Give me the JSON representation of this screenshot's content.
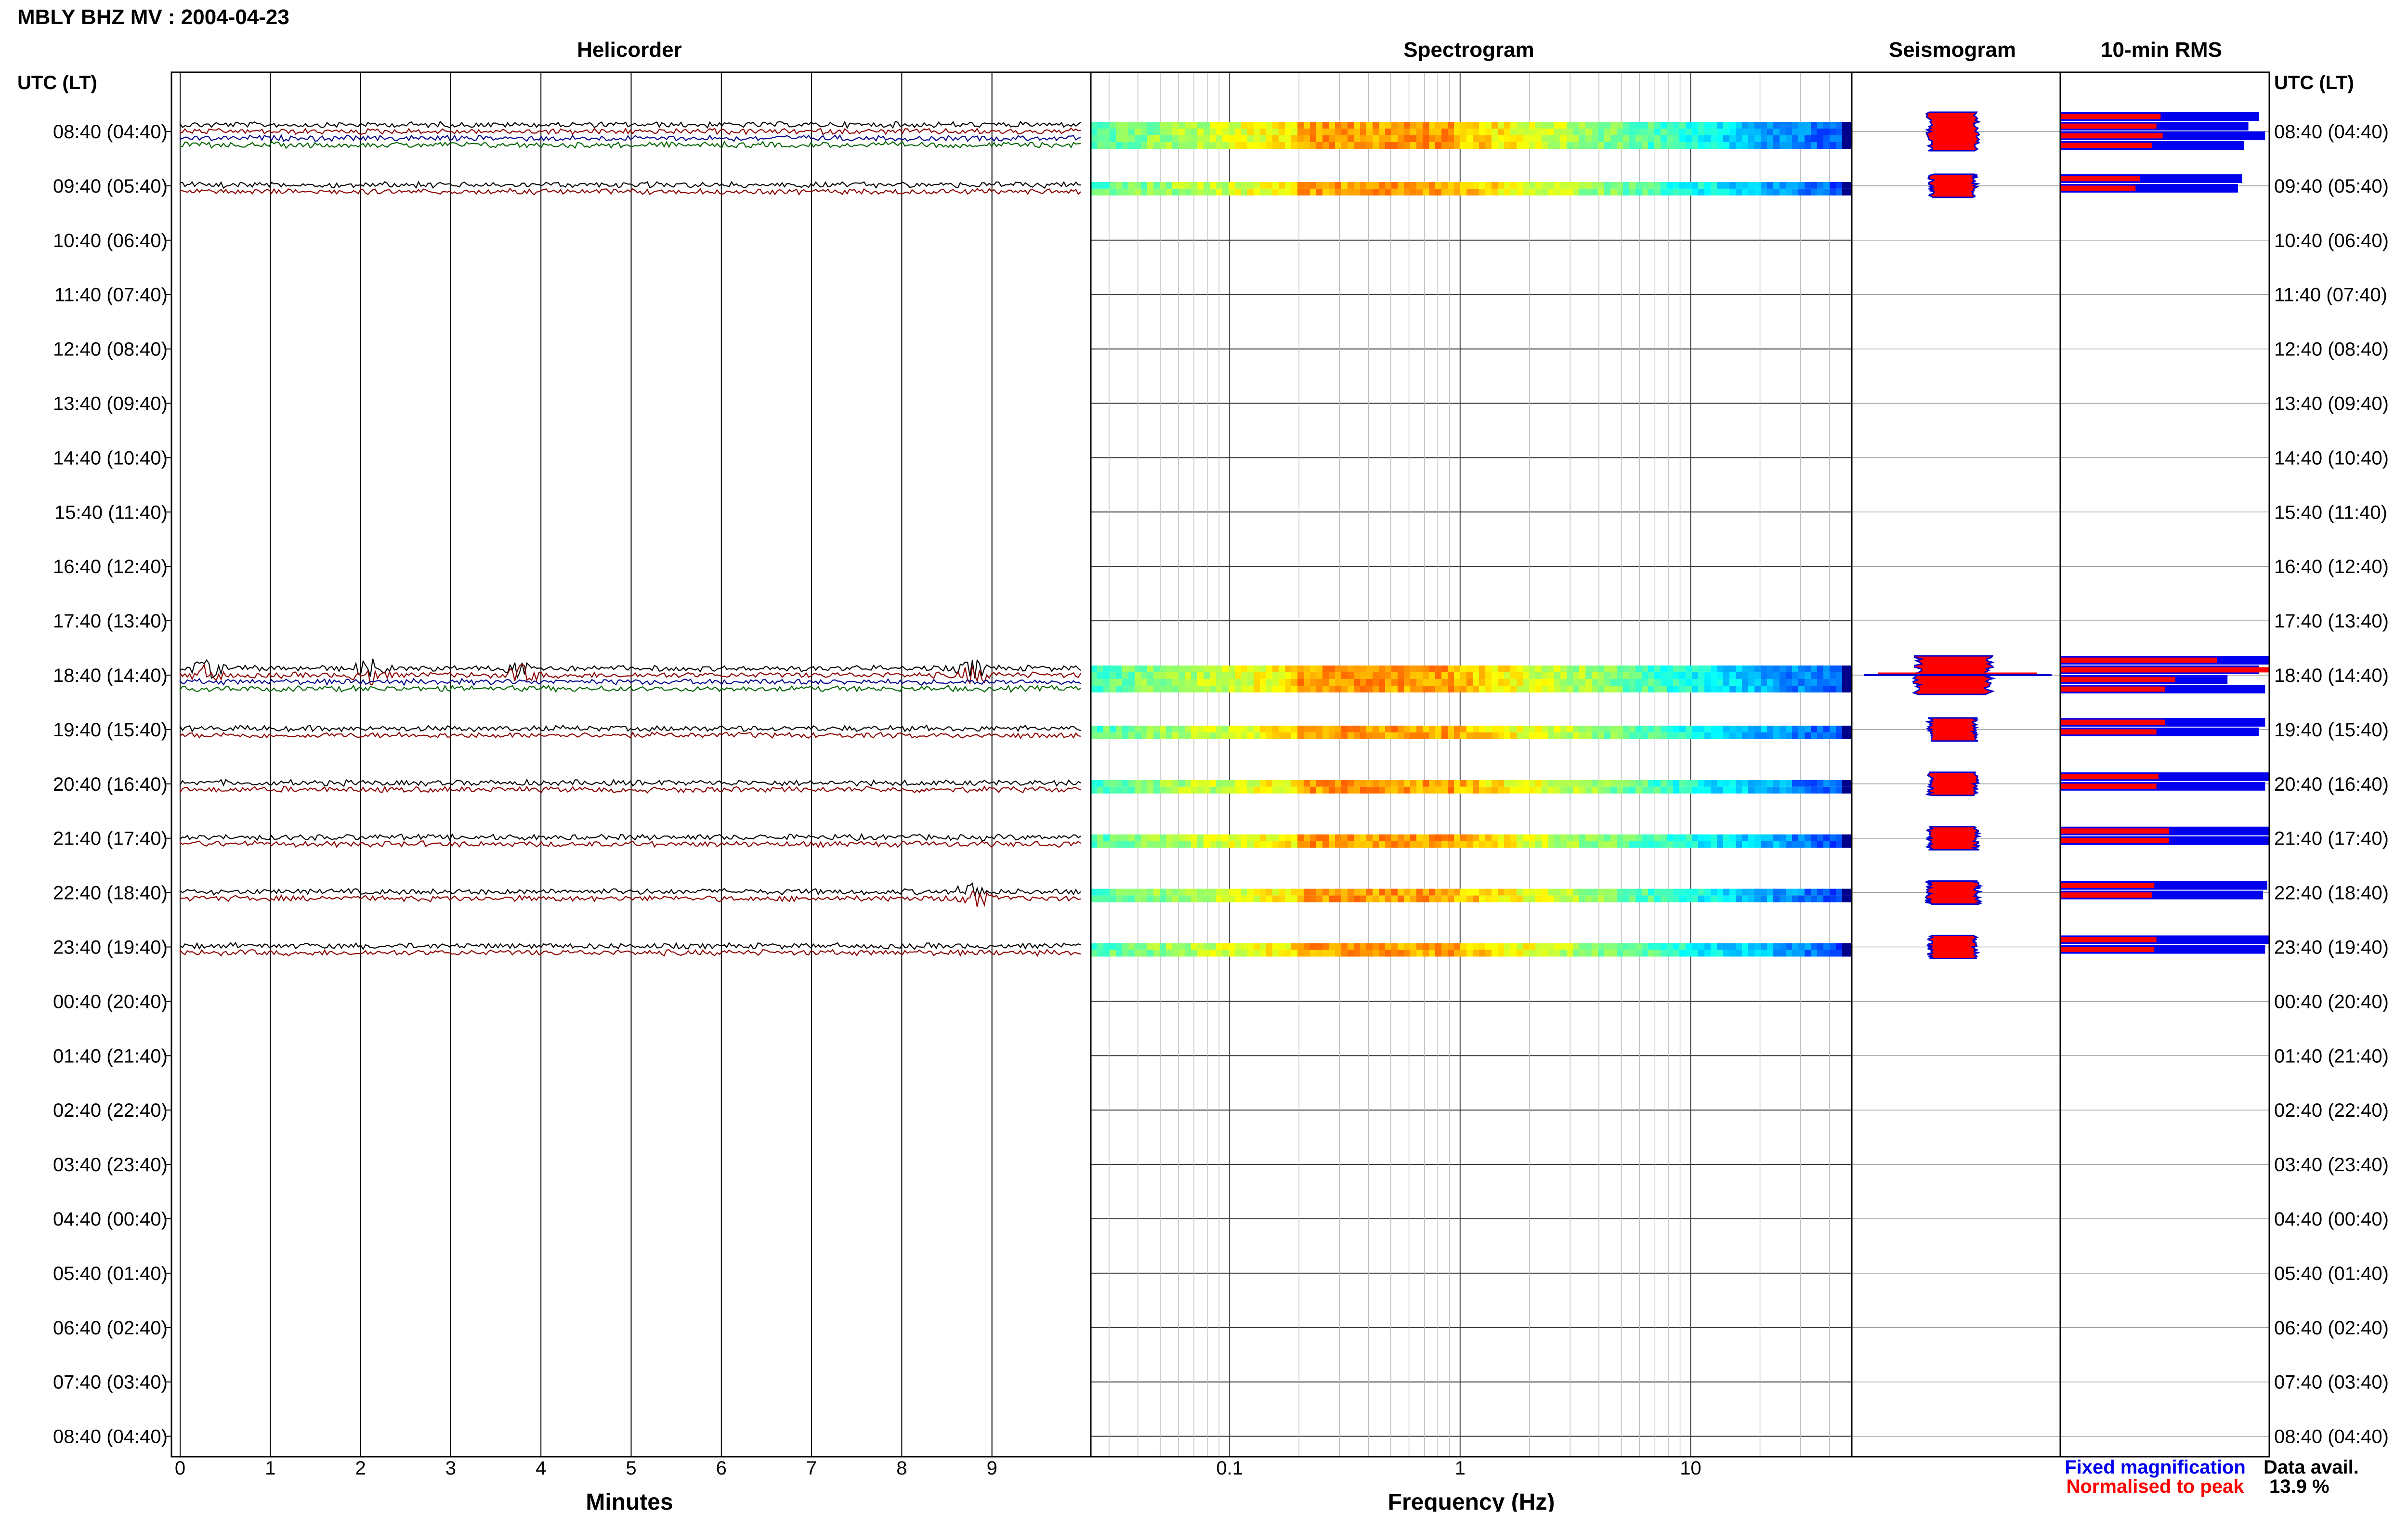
{
  "page": {
    "title": "MBLY BHZ MV : 2004-04-23",
    "utc_header_left": "UTC (LT)",
    "utc_header_right": "UTC (LT)"
  },
  "panels": {
    "helicorder": "Helicorder",
    "spectrogram": "Spectrogram",
    "seismogram": "Seismogram",
    "rms": "10-min RMS"
  },
  "axes": {
    "minutes_label": "Minutes",
    "minutes_ticks": [
      "0",
      "1",
      "2",
      "3",
      "4",
      "5",
      "6",
      "7",
      "8",
      "9"
    ],
    "frequency_label": "Frequency (Hz)",
    "frequency_ticks": [
      "0.1",
      "1",
      "10"
    ],
    "frequency_range_hz": [
      0.025,
      50
    ],
    "frequency_scale": "log"
  },
  "time_labels": [
    "08:40 (04:40)",
    "09:40 (05:40)",
    "10:40 (06:40)",
    "11:40 (07:40)",
    "12:40 (08:40)",
    "13:40 (09:40)",
    "14:40 (10:40)",
    "15:40 (11:40)",
    "16:40 (12:40)",
    "17:40 (13:40)",
    "18:40 (14:40)",
    "19:40 (15:40)",
    "20:40 (16:40)",
    "21:40 (17:40)",
    "22:40 (18:40)",
    "23:40 (19:40)",
    "00:40 (20:40)",
    "01:40 (21:40)",
    "02:40 (22:40)",
    "03:40 (23:40)",
    "04:40 (00:40)",
    "05:40 (01:40)",
    "06:40 (02:40)",
    "07:40 (03:40)",
    "08:40 (04:40)"
  ],
  "legend": {
    "fixed_magnification": "Fixed magnification",
    "normalised_to_peak": "Normalised to peak",
    "fixed_color": "#0000ee",
    "normalised_color": "#ff0000"
  },
  "data_availability": {
    "label": "Data avail.",
    "value": "13.9 %"
  },
  "colors": {
    "trace_colors": [
      "#000000",
      "#8b0000",
      "#00008b",
      "#006400"
    ],
    "rms_fixed": "#0000ee",
    "rms_normalised": "#ff0000",
    "seismogram_fill": "#ff0000",
    "seismogram_edge": "#0000cc",
    "grid": "#000000"
  },
  "chart_data": {
    "type": "heatmap",
    "title": "MBLY BHZ MV : 2004-04-23",
    "row_interval_minutes": 60,
    "subtrace_interval_minutes": 10,
    "data_availability_percent": 13.9,
    "segments": [
      {
        "hour": "08:40",
        "subtraces": 4,
        "spike_minutes": [],
        "seis_amp": 0.45,
        "rms_fixed": [
          0.95,
          0.9,
          0.98,
          0.88
        ],
        "rms_norm": [
          0.48,
          0.46,
          0.49,
          0.44
        ]
      },
      {
        "hour": "09:40",
        "subtraces": 2,
        "spike_minutes": [],
        "seis_amp": 0.38,
        "rms_fixed": [
          0.87,
          0.85
        ],
        "rms_norm": [
          0.38,
          0.36
        ]
      },
      {
        "hour": "18:40",
        "subtraces": 4,
        "spike_minutes": [
          0.3,
          2.1,
          3.8,
          8.8
        ],
        "seis_amp": 1.0,
        "rms_fixed": [
          1.0,
          0.95,
          0.8,
          0.98
        ],
        "rms_norm": [
          0.75,
          1.0,
          0.55,
          0.5
        ]
      },
      {
        "hour": "19:40",
        "subtraces": 2,
        "spike_minutes": [],
        "seis_amp": 0.42,
        "rms_fixed": [
          0.98,
          0.95
        ],
        "rms_norm": [
          0.5,
          0.46
        ]
      },
      {
        "hour": "20:40",
        "subtraces": 2,
        "spike_minutes": [],
        "seis_amp": 0.42,
        "rms_fixed": [
          1.0,
          0.98
        ],
        "rms_norm": [
          0.47,
          0.46
        ]
      },
      {
        "hour": "21:40",
        "subtraces": 2,
        "spike_minutes": [],
        "seis_amp": 0.45,
        "rms_fixed": [
          1.0,
          1.0
        ],
        "rms_norm": [
          0.52,
          0.52
        ]
      },
      {
        "hour": "22:40",
        "subtraces": 2,
        "spike_minutes": [
          8.8
        ],
        "seis_amp": 0.5,
        "rms_fixed": [
          0.99,
          0.97
        ],
        "rms_norm": [
          0.45,
          0.44
        ]
      },
      {
        "hour": "23:40",
        "subtraces": 2,
        "spike_minutes": [],
        "seis_amp": 0.4,
        "rms_fixed": [
          1.0,
          0.98
        ],
        "rms_norm": [
          0.46,
          0.45
        ]
      }
    ],
    "spectrogram": {
      "freq_range_hz": [
        0.025,
        50
      ],
      "peak_band_hz": [
        0.2,
        1.0
      ]
    }
  }
}
